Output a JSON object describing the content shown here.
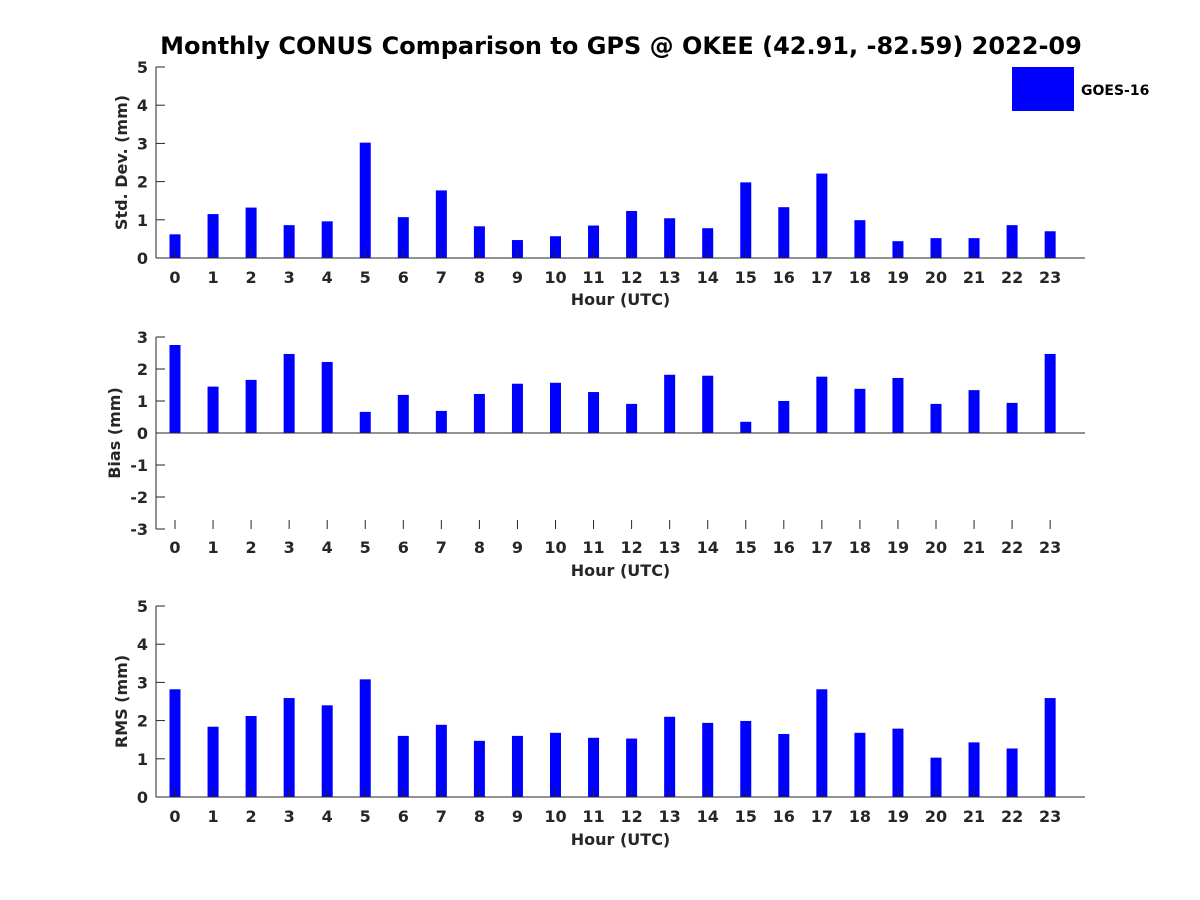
{
  "colors": {
    "bar": "#0000ff",
    "axis": "#262626",
    "background": "#ffffff"
  },
  "legend": {
    "label": "GOES-16",
    "placement": "top-right"
  },
  "chart_data": [
    {
      "id": "std",
      "type": "bar",
      "title": "Monthly CONUS Comparison to GPS @ OKEE (42.91, -82.59) 2022-09",
      "xlabel": "Hour (UTC)",
      "ylabel": "Std. Dev. (mm)",
      "ylim": [
        0,
        5
      ],
      "yticks": [
        0,
        1,
        2,
        3,
        4,
        5
      ],
      "categories": [
        "0",
        "1",
        "2",
        "3",
        "4",
        "5",
        "6",
        "7",
        "8",
        "9",
        "10",
        "11",
        "12",
        "13",
        "14",
        "15",
        "16",
        "17",
        "18",
        "19",
        "20",
        "21",
        "22",
        "23"
      ],
      "series": [
        {
          "name": "GOES-16",
          "values": [
            0.62,
            1.15,
            1.32,
            0.86,
            0.96,
            3.02,
            1.07,
            1.77,
            0.83,
            0.47,
            0.57,
            0.85,
            1.23,
            1.04,
            0.78,
            1.98,
            1.33,
            2.21,
            0.99,
            0.44,
            0.52,
            0.52,
            0.86,
            0.7
          ]
        }
      ]
    },
    {
      "id": "bias",
      "type": "bar",
      "title": "",
      "xlabel": "Hour (UTC)",
      "ylabel": "Bias (mm)",
      "ylim": [
        -3,
        3
      ],
      "yticks": [
        -3,
        -2,
        -1,
        0,
        1,
        2,
        3
      ],
      "categories": [
        "0",
        "1",
        "2",
        "3",
        "4",
        "5",
        "6",
        "7",
        "8",
        "9",
        "10",
        "11",
        "12",
        "13",
        "14",
        "15",
        "16",
        "17",
        "18",
        "19",
        "20",
        "21",
        "22",
        "23"
      ],
      "series": [
        {
          "name": "GOES-16",
          "values": [
            2.75,
            1.45,
            1.66,
            2.47,
            2.22,
            0.66,
            1.19,
            0.69,
            1.22,
            1.54,
            1.57,
            1.28,
            0.91,
            1.82,
            1.79,
            0.35,
            1.0,
            1.76,
            1.38,
            1.72,
            0.91,
            1.34,
            0.94,
            2.47
          ]
        }
      ]
    },
    {
      "id": "rms",
      "type": "bar",
      "title": "",
      "xlabel": "Hour (UTC)",
      "ylabel": "RMS (mm)",
      "ylim": [
        0,
        5
      ],
      "yticks": [
        0,
        1,
        2,
        3,
        4,
        5
      ],
      "categories": [
        "0",
        "1",
        "2",
        "3",
        "4",
        "5",
        "6",
        "7",
        "8",
        "9",
        "10",
        "11",
        "12",
        "13",
        "14",
        "15",
        "16",
        "17",
        "18",
        "19",
        "20",
        "21",
        "22",
        "23"
      ],
      "series": [
        {
          "name": "GOES-16",
          "values": [
            2.82,
            1.84,
            2.12,
            2.59,
            2.4,
            3.08,
            1.6,
            1.89,
            1.47,
            1.6,
            1.68,
            1.55,
            1.53,
            2.1,
            1.94,
            1.99,
            1.65,
            2.82,
            1.68,
            1.79,
            1.03,
            1.43,
            1.27,
            2.59
          ]
        }
      ]
    }
  ]
}
